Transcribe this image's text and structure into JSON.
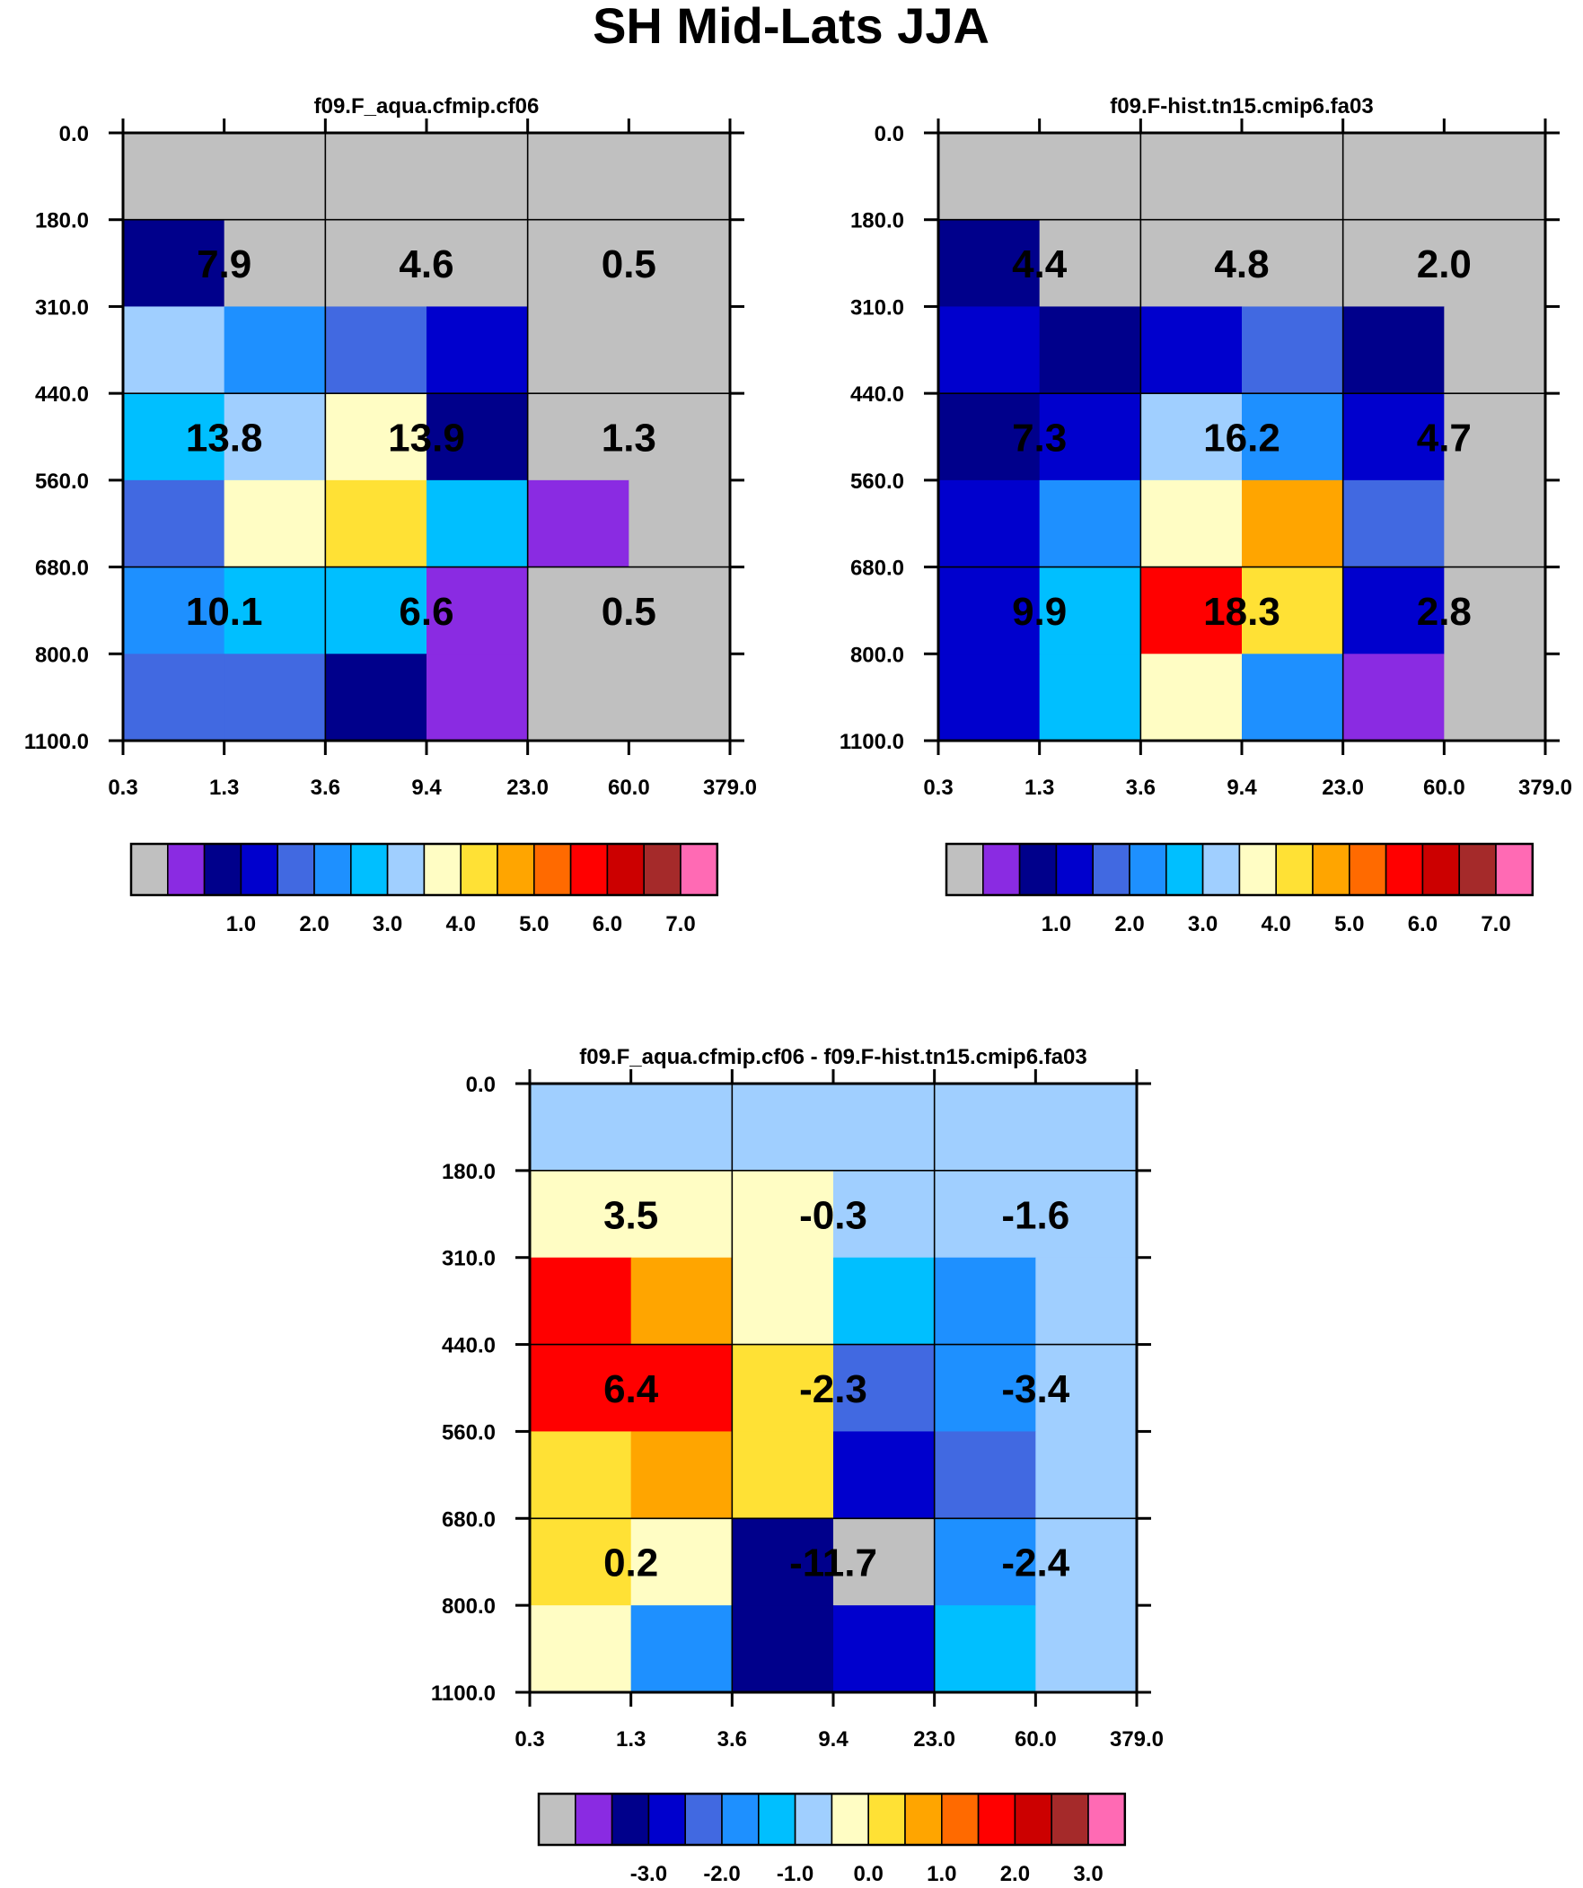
{
  "title": "SH Mid-Lats JJA",
  "axes": {
    "x_ticks": [
      "0.3",
      "1.3",
      "3.6",
      "9.4",
      "23.0",
      "60.0",
      "379.0"
    ],
    "y_ticks": [
      "0.0",
      "180.0",
      "310.0",
      "440.0",
      "560.0",
      "680.0",
      "800.0",
      "1100.0"
    ]
  },
  "colors": {
    "abs_palette": [
      "#c0c0c0",
      "#8a2be2",
      "#00008b",
      "#0000cd",
      "#4169e1",
      "#1e90ff",
      "#00bfff",
      "#a0cfff",
      "#fffdc4",
      "#ffe135",
      "#ffa500",
      "#ff6a00",
      "#ff0000",
      "#cc0000",
      "#a52a2a",
      "#ff6ab4"
    ],
    "diff_palette": [
      "#c0c0c0",
      "#8a2be2",
      "#00008b",
      "#0000cd",
      "#4169e1",
      "#1e90ff",
      "#00bfff",
      "#a0cfff",
      "#fffdc4",
      "#ffe135",
      "#ffa500",
      "#ff6a00",
      "#ff0000",
      "#cc0000",
      "#a52a2a",
      "#ff6ab4"
    ]
  },
  "chart_data": [
    {
      "type": "heatmap",
      "title": "f09.F_aqua.cfmip.cf06",
      "colorbar_labels": [
        "1.0",
        "2.0",
        "3.0",
        "4.0",
        "5.0",
        "6.0",
        "7.0"
      ],
      "colorbar_values": [
        1.0,
        2.0,
        3.0,
        4.0,
        5.0,
        6.0,
        7.0
      ],
      "cells": [
        [
          0,
          0,
          0,
          0,
          0,
          0
        ],
        [
          2,
          0,
          0,
          0,
          0,
          0
        ],
        [
          7,
          5,
          4,
          3,
          0,
          0
        ],
        [
          6,
          7,
          8,
          2,
          0,
          0
        ],
        [
          4,
          8,
          9,
          6,
          1,
          0
        ],
        [
          5,
          6,
          6,
          1,
          0,
          0
        ],
        [
          4,
          4,
          2,
          1,
          0,
          0
        ]
      ],
      "group_values": [
        [
          "7.9",
          "4.6",
          "0.5"
        ],
        [
          "13.8",
          "13.9",
          "1.3"
        ],
        [
          "10.1",
          "6.6",
          "0.5"
        ]
      ]
    },
    {
      "type": "heatmap",
      "title": "f09.F-hist.tn15.cmip6.fa03",
      "colorbar_labels": [
        "1.0",
        "2.0",
        "3.0",
        "4.0",
        "5.0",
        "6.0",
        "7.0"
      ],
      "colorbar_values": [
        1.0,
        2.0,
        3.0,
        4.0,
        5.0,
        6.0,
        7.0
      ],
      "cells": [
        [
          0,
          0,
          0,
          0,
          0,
          0
        ],
        [
          2,
          0,
          0,
          0,
          0,
          0
        ],
        [
          3,
          2,
          3,
          4,
          2,
          0
        ],
        [
          2,
          3,
          7,
          5,
          3,
          0
        ],
        [
          3,
          5,
          8,
          10,
          4,
          0
        ],
        [
          3,
          6,
          12,
          9,
          3,
          0
        ],
        [
          3,
          6,
          8,
          5,
          1,
          0
        ]
      ],
      "group_values": [
        [
          "4.4",
          "4.8",
          "2.0"
        ],
        [
          "7.3",
          "16.2",
          "4.7"
        ],
        [
          "9.9",
          "18.3",
          "2.8"
        ]
      ]
    },
    {
      "type": "heatmap",
      "title": "f09.F_aqua.cfmip.cf06 - f09.F-hist.tn15.cmip6.fa03",
      "colorbar_labels": [
        "-3.0",
        "-2.0",
        "-1.0",
        "0.0",
        "1.0",
        "2.0",
        "3.0"
      ],
      "colorbar_values": [
        -3.0,
        -2.0,
        -1.0,
        0.0,
        1.0,
        2.0,
        3.0
      ],
      "cells": [
        [
          7,
          7,
          7,
          7,
          7,
          7
        ],
        [
          8,
          8,
          8,
          7,
          7,
          7
        ],
        [
          12,
          10,
          8,
          6,
          5,
          7
        ],
        [
          12,
          12,
          9,
          4,
          5,
          7
        ],
        [
          9,
          10,
          9,
          3,
          4,
          7
        ],
        [
          9,
          8,
          2,
          0,
          5,
          7
        ],
        [
          8,
          5,
          2,
          3,
          6,
          7
        ]
      ],
      "group_values": [
        [
          "3.5",
          "-0.3",
          "-1.6"
        ],
        [
          "6.4",
          "-2.3",
          "-3.4"
        ],
        [
          "0.2",
          "-11.7",
          "-2.4"
        ]
      ]
    }
  ]
}
